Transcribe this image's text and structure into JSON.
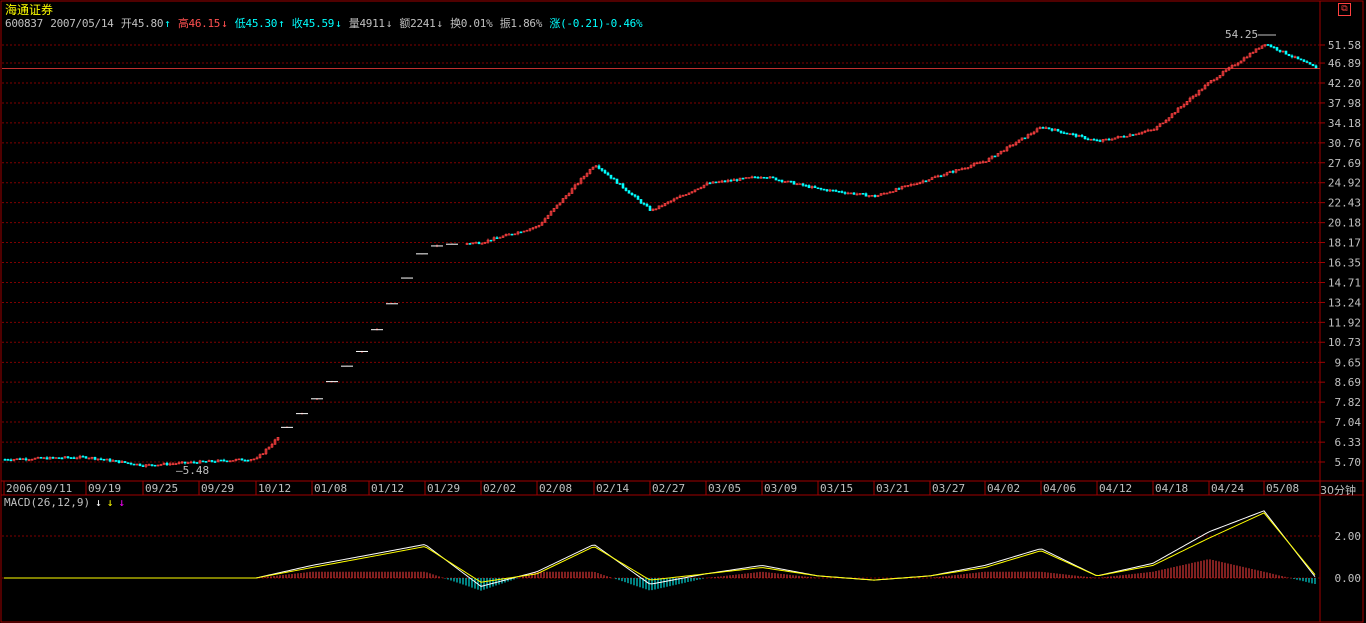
{
  "window": {
    "title": "海通证券",
    "restore_icon": "restore-icon"
  },
  "info_bar": {
    "code": "600837",
    "date": "2007/05/14",
    "open": "开45.80",
    "open_arrow": "↑",
    "high": "高46.15",
    "high_arrow": "↓",
    "low": "低45.30",
    "low_arrow": "↑",
    "close": "收45.59",
    "close_arrow": "↓",
    "volume": "量4911",
    "volume_arrow": "↓",
    "amount": "额2241",
    "amount_arrow": "↓",
    "turnover": "换0.01%",
    "amplitude": "振1.86%",
    "change": "涨(-0.21)-0.46%"
  },
  "macd_label": {
    "text": "MACD(26,12,9)",
    "arrows": [
      "↓",
      "↓",
      "↓"
    ]
  },
  "period_label": "30分钟",
  "colors": {
    "up": "#ff4040",
    "down": "#00ffff",
    "grid": "#800000",
    "dif": "#ffffff",
    "dea": "#ffff00"
  },
  "chart_data": [
    {
      "type": "candlestick",
      "title": "海通证券",
      "y_axis_ticks": [
        "51.58",
        "46.89",
        "42.20",
        "37.98",
        "34.18",
        "30.76",
        "27.69",
        "24.92",
        "22.43",
        "20.18",
        "18.17",
        "16.35",
        "14.71",
        "13.24",
        "11.92",
        "10.73",
        "9.65",
        "8.69",
        "7.82",
        "7.04",
        "6.33",
        "5.70"
      ],
      "y_scale": "log",
      "x_axis_ticks": [
        "2006/09/11",
        "09/19",
        "09/25",
        "09/29",
        "10/12",
        "01/08",
        "01/12",
        "01/29",
        "02/02",
        "02/08",
        "02/14",
        "02/27",
        "03/05",
        "03/09",
        "03/15",
        "03/21",
        "03/27",
        "04/02",
        "04/06",
        "04/12",
        "04/18",
        "04/24",
        "05/08"
      ],
      "annotations": [
        {
          "text": "54.25",
          "kind": "max"
        },
        {
          "text": "5.48",
          "kind": "min"
        }
      ],
      "close_path": [
        {
          "x": "2006/09/11",
          "y": 5.78
        },
        {
          "x": "09/19",
          "y": 5.85
        },
        {
          "x": "09/25",
          "y": 5.6
        },
        {
          "x": "09/29",
          "y": 5.7
        },
        {
          "x": "10/12",
          "y": 5.8
        },
        {
          "x": "01/08",
          "y": 7.82
        },
        {
          "x": "01/12",
          "y": 10.73
        },
        {
          "x": "01/29",
          "y": 17.8
        },
        {
          "x": "02/02",
          "y": 18.2
        },
        {
          "x": "02/08",
          "y": 19.8
        },
        {
          "x": "02/14",
          "y": 27.5
        },
        {
          "x": "02/27",
          "y": 21.5
        },
        {
          "x": "03/05",
          "y": 24.8
        },
        {
          "x": "03/09",
          "y": 25.8
        },
        {
          "x": "03/15",
          "y": 24.1
        },
        {
          "x": "03/21",
          "y": 23.2
        },
        {
          "x": "03/27",
          "y": 25.5
        },
        {
          "x": "04/02",
          "y": 28.0
        },
        {
          "x": "04/06",
          "y": 33.5
        },
        {
          "x": "04/12",
          "y": 31.0
        },
        {
          "x": "04/18",
          "y": 33.0
        },
        {
          "x": "04/24",
          "y": 42.5
        },
        {
          "x": "05/08",
          "y": 52.0
        },
        {
          "x": "05/14",
          "y": 45.59
        }
      ]
    },
    {
      "type": "line+bar",
      "title": "MACD(26,12,9)",
      "y_axis_ticks": [
        "2.00",
        "0.00"
      ],
      "series": [
        {
          "name": "DIF",
          "values": [
            0,
            0,
            0,
            0,
            0,
            0.6,
            1.1,
            1.6,
            -0.4,
            0.3,
            1.6,
            -0.3,
            0.2,
            0.6,
            0.1,
            -0.1,
            0.1,
            0.6,
            1.4,
            0.1,
            0.7,
            2.2,
            3.2,
            0.0
          ]
        },
        {
          "name": "DEA",
          "values": [
            0,
            0,
            0,
            0,
            0,
            0.5,
            1.0,
            1.5,
            -0.2,
            0.2,
            1.5,
            -0.1,
            0.2,
            0.5,
            0.1,
            -0.1,
            0.1,
            0.5,
            1.3,
            0.1,
            0.6,
            1.9,
            3.1,
            0.1
          ]
        }
      ]
    }
  ]
}
